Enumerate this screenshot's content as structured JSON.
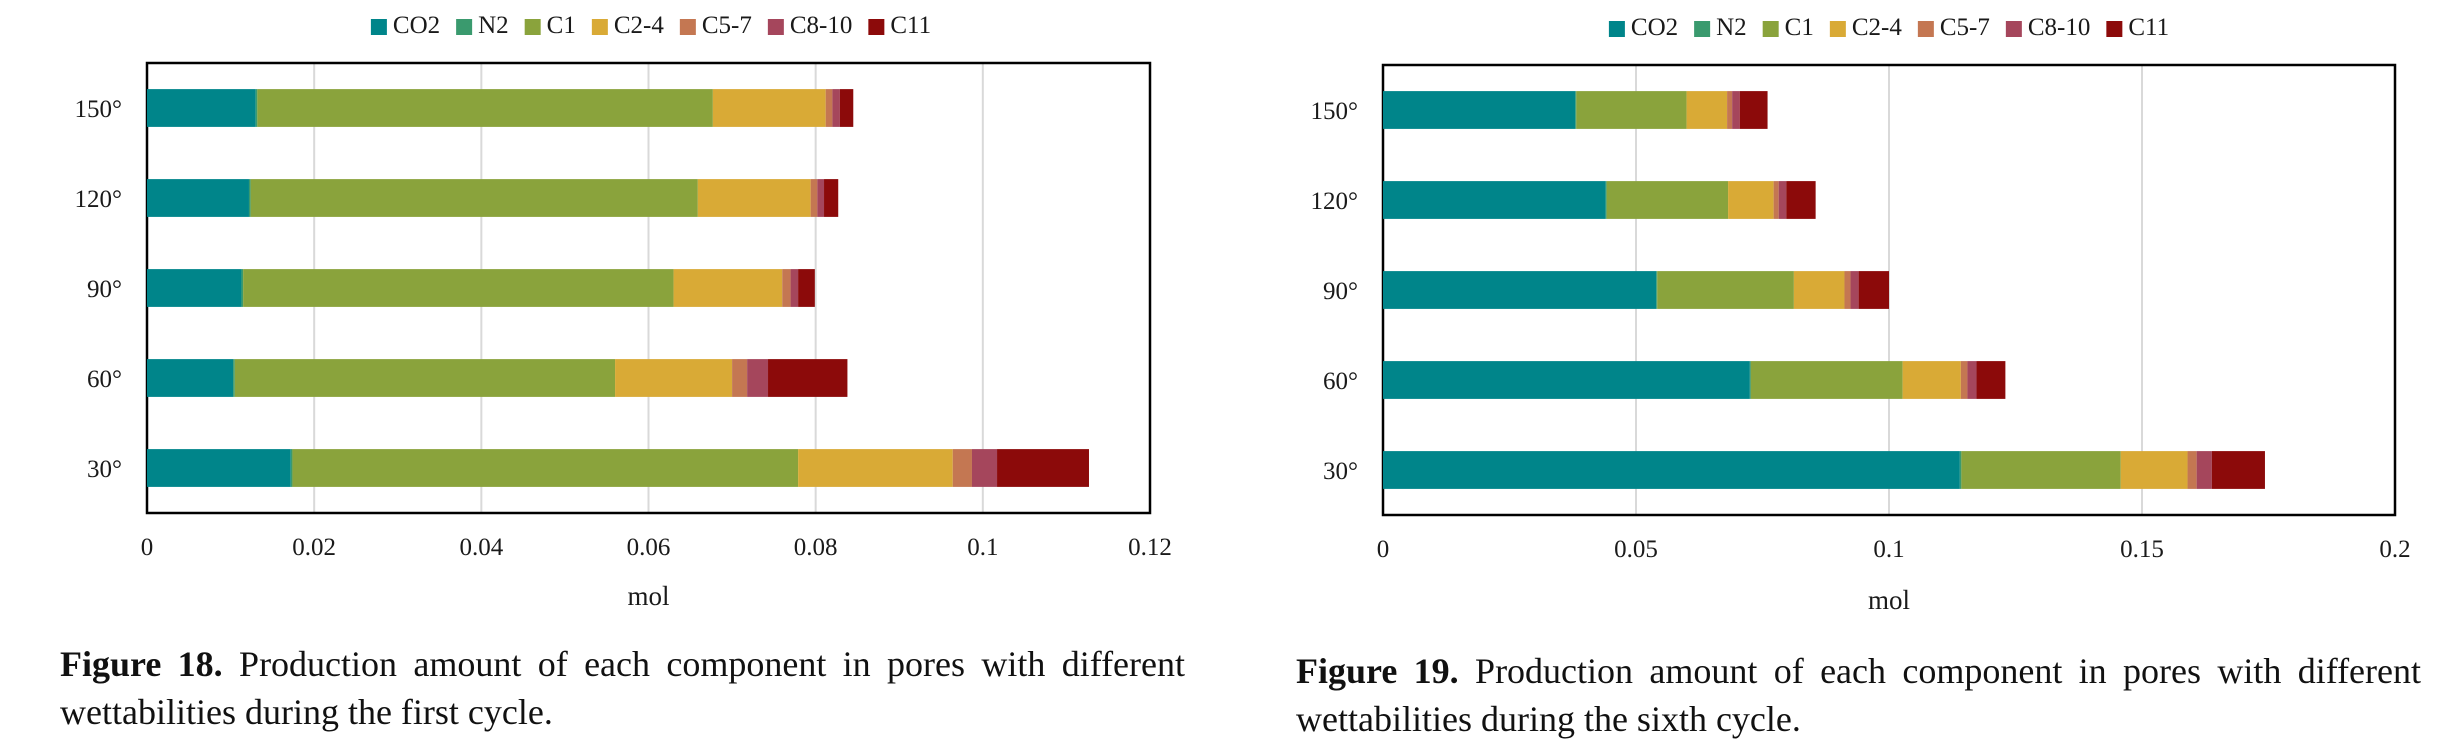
{
  "chart_data": [
    {
      "type": "bar",
      "orientation": "horizontal",
      "stacked": true,
      "title": "",
      "xlabel": "mol",
      "ylabel": "",
      "xlim": [
        0,
        0.12
      ],
      "xticks": [
        "0",
        "0.02",
        "0.04",
        "0.06",
        "0.08",
        "0.1",
        "0.12"
      ],
      "categories": [
        "150°",
        "120°",
        "90°",
        "60°",
        "30°"
      ],
      "series": [
        {
          "name": "CO2",
          "color": "#00858a",
          "values": [
            0.013,
            0.0122,
            0.0113,
            0.0103,
            0.0172
          ]
        },
        {
          "name": "N2",
          "color": "#3a9a6e",
          "values": [
            0.0002,
            0.0002,
            0.0002,
            0.0002,
            0.0002
          ]
        },
        {
          "name": "C1",
          "color": "#8aa33c",
          "values": [
            0.0545,
            0.0535,
            0.0515,
            0.0455,
            0.0605
          ]
        },
        {
          "name": "C2-4",
          "color": "#d9aa36",
          "values": [
            0.0135,
            0.0135,
            0.013,
            0.014,
            0.0185
          ]
        },
        {
          "name": "C5-7",
          "color": "#c47752",
          "values": [
            0.0008,
            0.0008,
            0.001,
            0.0018,
            0.0023
          ]
        },
        {
          "name": "C8-10",
          "color": "#a5465c",
          "values": [
            0.0009,
            0.0008,
            0.0009,
            0.0025,
            0.003
          ]
        },
        {
          "name": "C11",
          "color": "#8c0a0a",
          "values": [
            0.0016,
            0.0017,
            0.002,
            0.0095,
            0.011
          ]
        }
      ],
      "grid": true,
      "legend": "top"
    },
    {
      "type": "bar",
      "orientation": "horizontal",
      "stacked": true,
      "title": "",
      "xlabel": "mol",
      "ylabel": "",
      "xlim": [
        0,
        0.2
      ],
      "xticks": [
        "0",
        "0.05",
        "0.1",
        "0.15",
        "0.2"
      ],
      "categories": [
        "150°",
        "120°",
        "90°",
        "60°",
        "30°"
      ],
      "series": [
        {
          "name": "CO2",
          "color": "#00858a",
          "values": [
            0.038,
            0.044,
            0.054,
            0.0725,
            0.114
          ]
        },
        {
          "name": "N2",
          "color": "#3a9a6e",
          "values": [
            0.0002,
            0.0002,
            0.0002,
            0.0002,
            0.0003
          ]
        },
        {
          "name": "C1",
          "color": "#8aa33c",
          "values": [
            0.0218,
            0.024,
            0.027,
            0.03,
            0.0315
          ]
        },
        {
          "name": "C2-4",
          "color": "#d9aa36",
          "values": [
            0.008,
            0.009,
            0.01,
            0.0115,
            0.0132
          ]
        },
        {
          "name": "C5-7",
          "color": "#c47752",
          "values": [
            0.001,
            0.001,
            0.0012,
            0.0013,
            0.0018
          ]
        },
        {
          "name": "C8-10",
          "color": "#a5465c",
          "values": [
            0.0015,
            0.0015,
            0.0016,
            0.0018,
            0.003
          ]
        },
        {
          "name": "C11",
          "color": "#8c0a0a",
          "values": [
            0.0055,
            0.0058,
            0.006,
            0.0057,
            0.0105
          ]
        }
      ],
      "grid": true,
      "legend": "top"
    }
  ],
  "captions": [
    {
      "label": "Figure 18.",
      "text": "Production amount of each component in pores with different wettabilities during the first cycle."
    },
    {
      "label": "Figure 19.",
      "text": "Production amount of each component in pores with different wettabilities during the sixth cycle."
    }
  ]
}
